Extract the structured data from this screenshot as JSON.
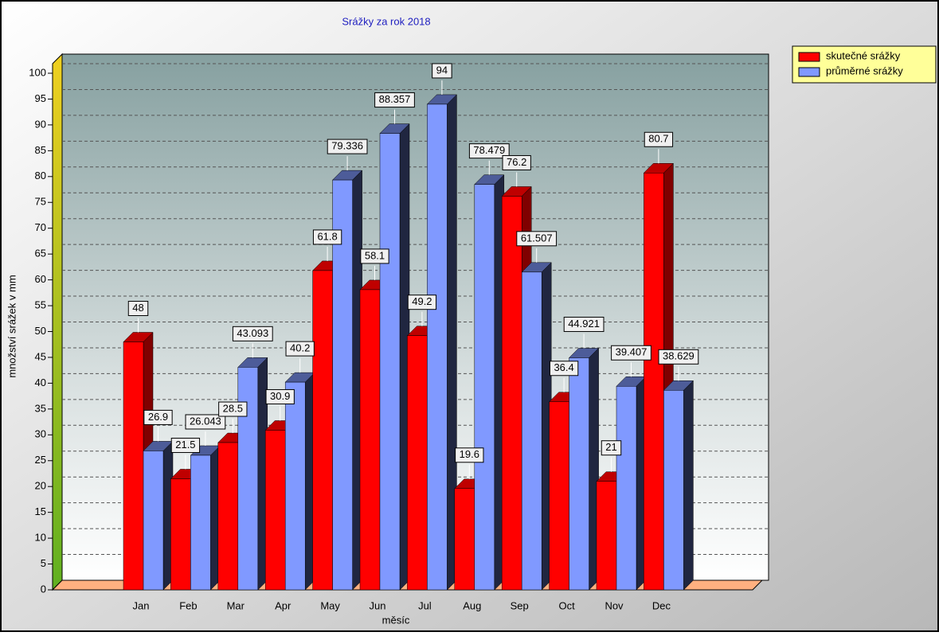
{
  "chart_data": {
    "type": "bar3d",
    "title": "Srážky za rok 2018",
    "x_label": "měsíc",
    "y_label": "množství srážek v mm",
    "categories": [
      "Jan",
      "Feb",
      "Mar",
      "Apr",
      "May",
      "Jun",
      "Jul",
      "Aug",
      "Sep",
      "Oct",
      "Nov",
      "Dec"
    ],
    "series": [
      {
        "name": "skutečné srážky",
        "color": "#ff0000",
        "values": [
          48,
          21.5,
          28.5,
          30.9,
          61.8,
          58.1,
          49.2,
          19.6,
          76.2,
          36.4,
          21,
          80.7
        ]
      },
      {
        "name": "průměrné srážky",
        "color": "#8099ff",
        "values": [
          26.9,
          26.043,
          43.093,
          40.2,
          79.336,
          88.357,
          94,
          78.479,
          61.507,
          44.921,
          39.407,
          38.629
        ]
      }
    ],
    "ylim": [
      0,
      100
    ],
    "yticks": [
      0,
      5,
      10,
      15,
      20,
      25,
      30,
      35,
      40,
      45,
      50,
      55,
      60,
      65,
      70,
      75,
      80,
      85,
      90,
      95,
      100
    ],
    "grid": true,
    "legend": "top-right"
  }
}
